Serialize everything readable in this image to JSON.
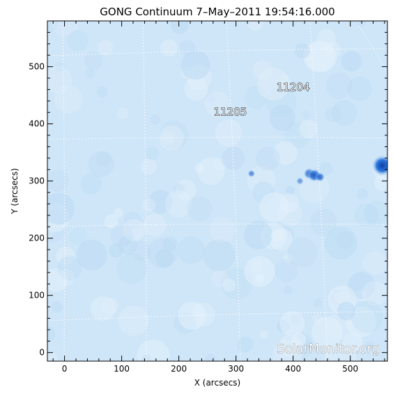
{
  "title": "GONG Continuum   7–May–2011 19:54:16.000",
  "xlabel": "X (arcsecs)",
  "ylabel": "Y (arcsecs)",
  "watermark": "SolarMonitor.org",
  "x_axis": {
    "range": [
      -30,
      565
    ],
    "ticks": [
      0,
      100,
      200,
      300,
      400,
      500
    ]
  },
  "y_axis": {
    "range": [
      -15,
      580
    ],
    "ticks": [
      0,
      100,
      200,
      300,
      400,
      500
    ]
  },
  "regions": [
    {
      "label": "11205",
      "x": 290,
      "y": 415
    },
    {
      "label": "11204",
      "x": 400,
      "y": 458
    }
  ],
  "sunspots": [
    {
      "x": 327,
      "y": 313,
      "r": 4,
      "strength": 0.6
    },
    {
      "x": 412,
      "y": 300,
      "r": 4,
      "strength": 0.5
    },
    {
      "x": 428,
      "y": 313,
      "r": 6,
      "strength": 0.7
    },
    {
      "x": 437,
      "y": 310,
      "r": 7,
      "strength": 0.85
    },
    {
      "x": 447,
      "y": 307,
      "r": 5,
      "strength": 0.75
    },
    {
      "x": 556,
      "y": 327,
      "r": 11,
      "strength": 1.0
    }
  ],
  "colors": {
    "disk": "#cfe6f8",
    "spot": "#1a5fd1",
    "grid": "#ffffff",
    "axes": "#000000"
  }
}
